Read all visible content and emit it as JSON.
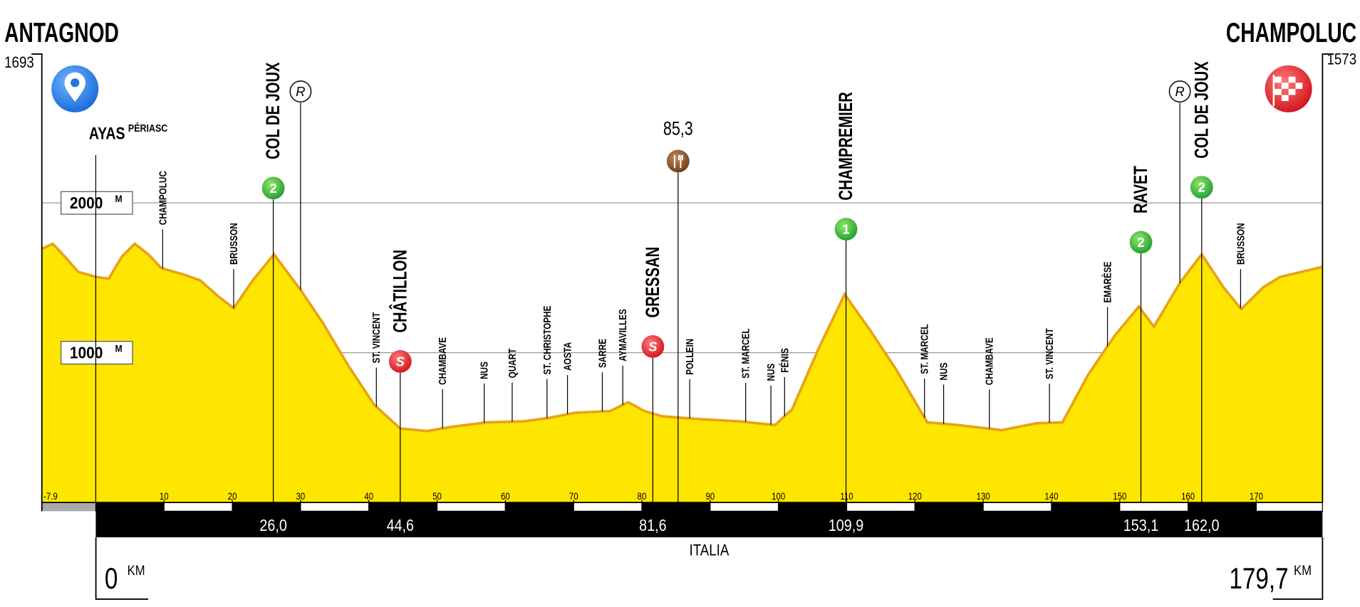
{
  "chart_data": {
    "type": "area",
    "start": {
      "name": "ANTAGNOD",
      "elevation": 1693,
      "km": 0
    },
    "end": {
      "name": "CHAMPOLUC",
      "elevation": 1573,
      "km": {
        "value": 179.7,
        "label": "179,7"
      }
    },
    "x_unit": "KM",
    "y_unit": "M",
    "town": {
      "name": "AYAS",
      "sub": "PÉRIASC",
      "km": 0
    },
    "country": "ITALIA",
    "xlim": [
      -7.9,
      179.7
    ],
    "xticks": [
      -7.9,
      10,
      20,
      30,
      40,
      50,
      60,
      70,
      80,
      90,
      100,
      110,
      120,
      130,
      140,
      150,
      160,
      170
    ],
    "ylim": [
      0,
      3000
    ],
    "yticks": [
      1000,
      2000
    ],
    "grid": true,
    "fill_color": "#ffe600",
    "line_color": "#e8a317",
    "x": [
      -7.9,
      -6.3,
      -4.5,
      -2.6,
      0,
      1.9,
      3.8,
      5.7,
      7.7,
      9.6,
      12.8,
      15.3,
      17.9,
      20.2,
      23,
      26.1,
      30,
      33.2,
      37,
      40.8,
      44.6,
      48.5,
      52.3,
      57.4,
      62.5,
      66.3,
      70.2,
      75.3,
      78,
      80.4,
      82.9,
      88,
      94.4,
      99.5,
      102,
      105.9,
      109.7,
      113.5,
      117.3,
      121.8,
      126.3,
      132.7,
      137.8,
      141.6,
      145.4,
      149.3,
      152.8,
      155,
      158.8,
      162,
      165.2,
      167.8,
      171,
      173.5,
      179.7
    ],
    "values": [
      1693,
      1727,
      1640,
      1540,
      1506,
      1494,
      1640,
      1727,
      1657,
      1564,
      1523,
      1483,
      1378,
      1297,
      1483,
      1657,
      1419,
      1203,
      913,
      651,
      494,
      477,
      506,
      535,
      541,
      564,
      599,
      610,
      669,
      610,
      576,
      558,
      541,
      517,
      622,
      1029,
      1390,
      1145,
      884,
      535,
      517,
      483,
      529,
      535,
      855,
      1116,
      1308,
      1174,
      1465,
      1657,
      1436,
      1291,
      1436,
      1506,
      1573
    ],
    "places": [
      {
        "name": "CHAMPOLUC",
        "km": 9.8
      },
      {
        "name": "BRUSSON",
        "km": 20.2
      },
      {
        "name": "ST. VINCENT",
        "km": 41.1
      },
      {
        "name": "CHAMBAVE",
        "km": 50.8
      },
      {
        "name": "NUS",
        "km": 56.9
      },
      {
        "name": "QUART",
        "km": 61
      },
      {
        "name": "ST. CHRISTOPHE",
        "km": 66.1
      },
      {
        "name": "AOSTA",
        "km": 69.1
      },
      {
        "name": "SARRE",
        "km": 74.2
      },
      {
        "name": "AYMAVILLES",
        "km": 77.2
      },
      {
        "name": "POLLEIN",
        "km": 87
      },
      {
        "name": "ST. MARCEL",
        "km": 95.2
      },
      {
        "name": "NUS",
        "km": 98.9
      },
      {
        "name": "FÉNIS",
        "km": 100.9
      },
      {
        "name": "ST. MARCEL",
        "km": 121.4
      },
      {
        "name": "NUS",
        "km": 124.2
      },
      {
        "name": "CHAMBAVE",
        "km": 130.9
      },
      {
        "name": "ST. VINCENT",
        "km": 139.7
      },
      {
        "name": "EMARÈSE",
        "km": 148.2
      },
      {
        "name": "BRUSSON",
        "km": 167.7
      }
    ],
    "climbs": [
      {
        "name": "COL DE JOUX",
        "km": 26.0,
        "category": 2
      },
      {
        "name": "CHAMPREMIER",
        "km": 109.9,
        "category": 1
      },
      {
        "name": "RAVET",
        "km": 153.1,
        "category": 2
      },
      {
        "name": "COL DE JOUX",
        "km": 162.0,
        "category": 2
      }
    ],
    "sprint_symbol": "S",
    "sprints": [
      {
        "name": "CHÂTILLON",
        "km": 44.6
      },
      {
        "name": "GRESSAN",
        "km": 81.6
      }
    ],
    "feed": {
      "km": {
        "value": 85.3,
        "label": "85,3"
      }
    },
    "refreshment_symbol": "R",
    "refreshments": [
      {
        "km": 30
      },
      {
        "km": 158.8
      }
    ],
    "distance_labels": [
      {
        "value": 26.0,
        "label": "26,0"
      },
      {
        "value": 44.6,
        "label": "44,6"
      },
      {
        "value": 81.6,
        "label": "81,6"
      },
      {
        "value": 109.9,
        "label": "109,9"
      },
      {
        "value": 153.1,
        "label": "153,1"
      },
      {
        "value": 162.0,
        "label": "162,0"
      }
    ]
  }
}
